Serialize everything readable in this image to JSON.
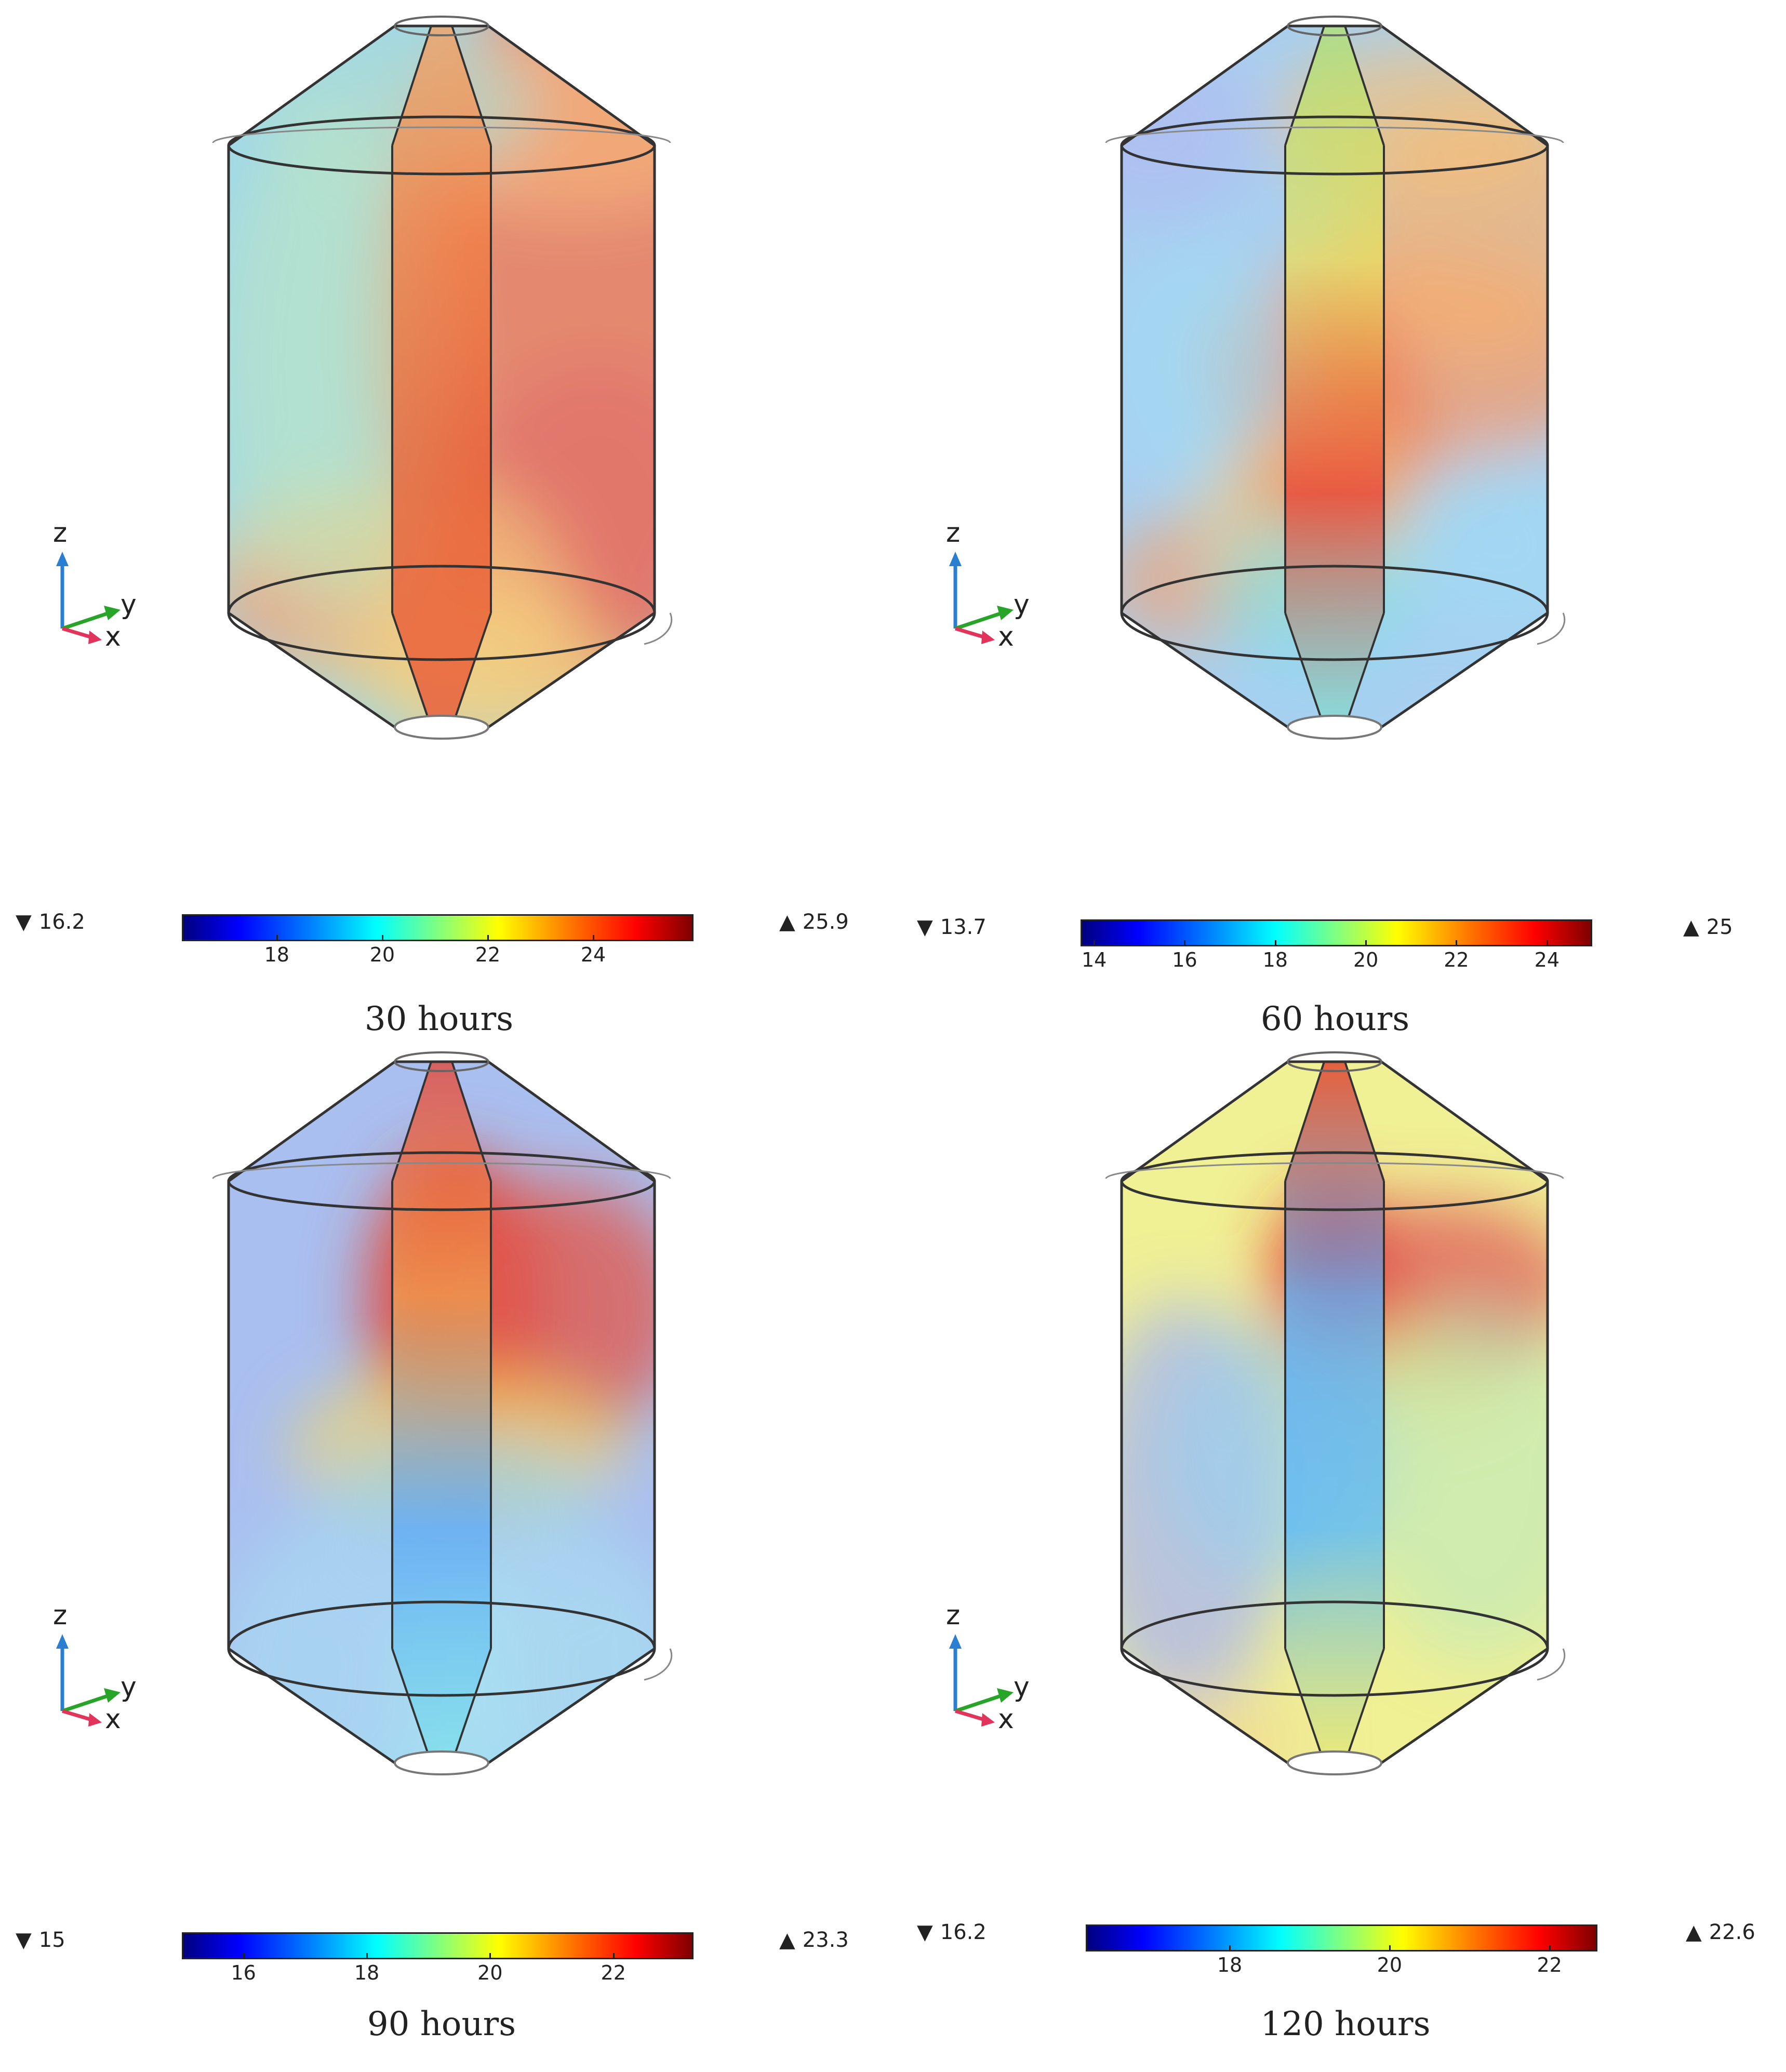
{
  "axis_labels": {
    "z": "z",
    "y": "y",
    "x": "x"
  },
  "panels": [
    {
      "caption": "30 hours",
      "min_label": "16.2",
      "max_label": "25.9",
      "range": [
        16.2,
        25.9
      ],
      "ticks": [
        "18",
        "20",
        "22",
        "24"
      ],
      "tick_values": [
        18,
        20,
        22,
        24
      ],
      "state": "hot-core"
    },
    {
      "caption": "60 hours",
      "min_label": "13.7",
      "max_label": "25",
      "range": [
        13.7,
        25
      ],
      "ticks": [
        "14",
        "16",
        "18",
        "20",
        "22",
        "24"
      ],
      "tick_values": [
        14,
        16,
        18,
        20,
        22,
        24
      ],
      "state": "mid-hot"
    },
    {
      "caption": "90 hours",
      "min_label": "15",
      "max_label": "23.3",
      "range": [
        15,
        23.3
      ],
      "ticks": [
        "16",
        "18",
        "20",
        "22"
      ],
      "tick_values": [
        16,
        18,
        20,
        22
      ],
      "state": "top-hot"
    },
    {
      "caption": "120 hours",
      "min_label": "16.2",
      "max_label": "22.6",
      "range": [
        16.2,
        22.6
      ],
      "ticks": [
        "18",
        "20",
        "22"
      ],
      "tick_values": [
        18,
        20,
        22
      ],
      "state": "top-spot"
    }
  ]
}
